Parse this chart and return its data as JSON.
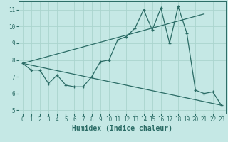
{
  "title": "",
  "xlabel": "Humidex (Indice chaleur)",
  "ylabel": "",
  "xlim": [
    -0.5,
    23.5
  ],
  "ylim": [
    4.8,
    11.5
  ],
  "yticks": [
    5,
    6,
    7,
    8,
    9,
    10,
    11
  ],
  "xticks": [
    0,
    1,
    2,
    3,
    4,
    5,
    6,
    7,
    8,
    9,
    10,
    11,
    12,
    13,
    14,
    15,
    16,
    17,
    18,
    19,
    20,
    21,
    22,
    23
  ],
  "bg_color": "#c5e8e5",
  "line_color": "#2a6b65",
  "grid_color": "#aad4ce",
  "line1_x": [
    0,
    1,
    2,
    3,
    4,
    5,
    6,
    7,
    8,
    9,
    10,
    11,
    12,
    13,
    14,
    15,
    16,
    17,
    18,
    19,
    20,
    21,
    22,
    23
  ],
  "line1_y": [
    7.8,
    7.4,
    7.4,
    6.6,
    7.1,
    6.5,
    6.4,
    6.4,
    7.0,
    7.9,
    8.0,
    9.2,
    9.4,
    9.9,
    11.0,
    9.8,
    11.1,
    9.0,
    11.2,
    9.6,
    6.2,
    6.0,
    6.1,
    5.3
  ],
  "line2_x": [
    0,
    21
  ],
  "line2_y": [
    7.8,
    10.75
  ],
  "line3_x": [
    0,
    23
  ],
  "line3_y": [
    7.8,
    5.3
  ],
  "xlabel_fontsize": 7,
  "tick_fontsize": 5.5,
  "lw": 0.9,
  "marker_size": 3.5
}
